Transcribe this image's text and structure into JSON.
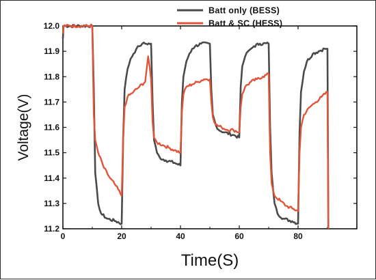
{
  "chart_data": {
    "type": "line",
    "xlabel": "Time(S)",
    "ylabel": "Voltage(V)",
    "xlim": [
      0,
      100
    ],
    "ylim": [
      11.2,
      12.0
    ],
    "x_ticks": [
      0,
      20,
      40,
      60,
      80
    ],
    "y_ticks": [
      11.2,
      11.3,
      11.4,
      11.5,
      11.6,
      11.7,
      11.8,
      11.9,
      12.0
    ],
    "legend": "top-right",
    "series": [
      {
        "name": "Batt only (BESS)",
        "color": "#4a4a4a",
        "x": [
          0,
          0.2,
          10,
          10.5,
          11,
          12,
          13,
          15,
          18,
          20,
          20.5,
          21,
          22,
          23,
          24,
          25,
          26,
          27,
          28,
          30,
          30.5,
          31,
          32,
          33,
          35,
          38,
          40,
          40.5,
          41,
          42,
          43,
          44,
          45,
          47,
          50,
          50.5,
          51,
          52,
          53,
          55,
          58,
          60,
          60.5,
          61,
          62,
          63,
          64,
          65,
          67,
          70,
          70.5,
          71,
          72,
          73,
          75,
          78,
          80,
          80.5,
          81,
          82,
          83,
          85,
          87,
          89,
          90,
          90.3
        ],
        "y": [
          11.95,
          12.0,
          12.0,
          11.75,
          11.42,
          11.3,
          11.26,
          11.24,
          11.23,
          11.22,
          11.55,
          11.75,
          11.83,
          11.87,
          11.89,
          11.91,
          11.92,
          11.93,
          11.93,
          11.93,
          11.7,
          11.55,
          11.5,
          11.48,
          11.47,
          11.46,
          11.45,
          11.7,
          11.8,
          11.86,
          11.89,
          11.91,
          11.92,
          11.93,
          11.93,
          11.75,
          11.65,
          11.61,
          11.59,
          11.58,
          11.57,
          11.56,
          11.76,
          11.84,
          11.88,
          11.9,
          11.91,
          11.92,
          11.93,
          11.93,
          11.6,
          11.42,
          11.3,
          11.26,
          11.24,
          11.23,
          11.22,
          11.58,
          11.74,
          11.82,
          11.86,
          11.89,
          11.9,
          11.91,
          11.91,
          11.2
        ]
      },
      {
        "name": "Batt & SC (HESS)",
        "color": "#e0553a",
        "x": [
          0,
          0.2,
          10,
          10.5,
          11,
          12,
          14,
          16,
          18,
          20,
          20.5,
          21,
          22,
          24,
          26,
          28,
          29,
          30,
          30.5,
          31,
          32,
          34,
          36,
          38,
          40,
          40.5,
          41,
          42,
          44,
          46,
          48,
          50,
          50.5,
          51,
          52,
          54,
          56,
          58,
          60,
          60.5,
          61,
          62,
          64,
          66,
          68,
          70,
          70.5,
          71,
          72,
          74,
          76,
          78,
          80,
          80.5,
          81,
          82,
          84,
          86,
          88,
          90,
          90.3
        ],
        "y": [
          11.97,
          12.0,
          12.0,
          11.65,
          11.55,
          11.5,
          11.44,
          11.4,
          11.37,
          11.33,
          11.55,
          11.68,
          11.72,
          11.74,
          11.76,
          11.78,
          11.88,
          11.79,
          11.62,
          11.56,
          11.54,
          11.53,
          11.52,
          11.51,
          11.5,
          11.66,
          11.73,
          11.76,
          11.77,
          11.78,
          11.79,
          11.79,
          11.7,
          11.64,
          11.61,
          11.6,
          11.59,
          11.59,
          11.58,
          11.68,
          11.73,
          11.76,
          11.78,
          11.79,
          11.8,
          11.81,
          11.5,
          11.38,
          11.33,
          11.31,
          11.29,
          11.28,
          11.27,
          11.5,
          11.6,
          11.65,
          11.68,
          11.7,
          11.72,
          11.74,
          11.2
        ]
      }
    ]
  }
}
